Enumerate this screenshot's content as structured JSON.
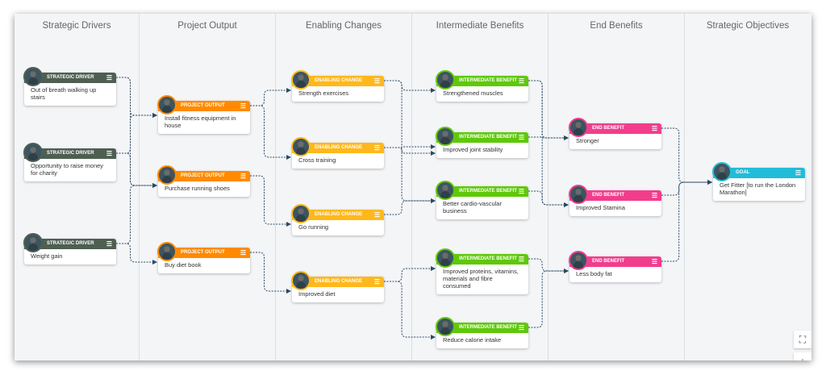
{
  "columns": [
    "Strategic Drivers",
    "Project Output",
    "Enabling Changes",
    "Intermediate Benefits",
    "End Benefits",
    "Strategic Objectives"
  ],
  "types": {
    "sd": {
      "label": "STRATEGIC DRIVER",
      "color": "#4e5f52"
    },
    "po": {
      "label": "PROJECT OUTPUT",
      "color": "#ff8a00"
    },
    "ec": {
      "label": "ENABLING CHANGE",
      "color": "#ffb81c"
    },
    "ib": {
      "label": "INTERMEDIATE BENEFIT",
      "color": "#5fc80a"
    },
    "eb": {
      "label": "END BENEFIT",
      "color": "#f23d8c"
    },
    "goal": {
      "label": "GOAL",
      "color": "#22bcd9"
    }
  },
  "nodes": [
    {
      "id": "sd1",
      "type": "sd",
      "text": "Out of breath walking up stairs"
    },
    {
      "id": "sd2",
      "type": "sd",
      "text": "Opportunity to raise money for charity"
    },
    {
      "id": "sd3",
      "type": "sd",
      "text": "Weight gain"
    },
    {
      "id": "po1",
      "type": "po",
      "text": "Install fitness equipment in house"
    },
    {
      "id": "po2",
      "type": "po",
      "text": "Purchase running shoes"
    },
    {
      "id": "po3",
      "type": "po",
      "text": "Buy diet book"
    },
    {
      "id": "ec1",
      "type": "ec",
      "text": "Strength exercises"
    },
    {
      "id": "ec2",
      "type": "ec",
      "text": "Cross training"
    },
    {
      "id": "ec3",
      "type": "ec",
      "text": "Go running"
    },
    {
      "id": "ec4",
      "type": "ec",
      "text": "Improved diet"
    },
    {
      "id": "ib1",
      "type": "ib",
      "text": "Strengthened muscles"
    },
    {
      "id": "ib2",
      "type": "ib",
      "text": "Improved joint stability"
    },
    {
      "id": "ib3",
      "type": "ib",
      "text": "Better cardio-vascular business"
    },
    {
      "id": "ib4",
      "type": "ib",
      "text": "Improved proteins, vitamins, materials and fibre consumed"
    },
    {
      "id": "ib5",
      "type": "ib",
      "text": "Reduce calorie intake"
    },
    {
      "id": "eb1",
      "type": "eb",
      "text": "Stronger"
    },
    {
      "id": "eb2",
      "type": "eb",
      "text": "Improved Stamina"
    },
    {
      "id": "eb3",
      "type": "eb",
      "text": "Less body fat"
    },
    {
      "id": "goal",
      "type": "goal",
      "text": "Get Fitter [to run the London Marathon]"
    }
  ],
  "edges": [
    [
      "sd1",
      "po1"
    ],
    [
      "sd1",
      "po2"
    ],
    [
      "sd2",
      "po1"
    ],
    [
      "sd2",
      "po2"
    ],
    [
      "sd3",
      "po2"
    ],
    [
      "sd3",
      "po3"
    ],
    [
      "po1",
      "ec1"
    ],
    [
      "po1",
      "ec2"
    ],
    [
      "po2",
      "ec3"
    ],
    [
      "po3",
      "ec4"
    ],
    [
      "ec1",
      "ib1"
    ],
    [
      "ec1",
      "ib3"
    ],
    [
      "ec2",
      "ib2"
    ],
    [
      "ec2",
      "ib2"
    ],
    [
      "ec3",
      "ib3"
    ],
    [
      "ec4",
      "ib4"
    ],
    [
      "ec4",
      "ib5"
    ],
    [
      "ib1",
      "eb1"
    ],
    [
      "ib1",
      "eb2"
    ],
    [
      "ib2",
      "eb1"
    ],
    [
      "ib3",
      "eb2"
    ],
    [
      "ib4",
      "eb3"
    ],
    [
      "ib5",
      "eb3"
    ],
    [
      "eb1",
      "goal"
    ],
    [
      "eb2",
      "goal"
    ],
    [
      "eb3",
      "goal"
    ]
  ],
  "menu_icon": "hamburger-icon",
  "tools": [
    "fit-to-screen-icon",
    "zoom-icon"
  ],
  "link_color": "#2b4a66"
}
